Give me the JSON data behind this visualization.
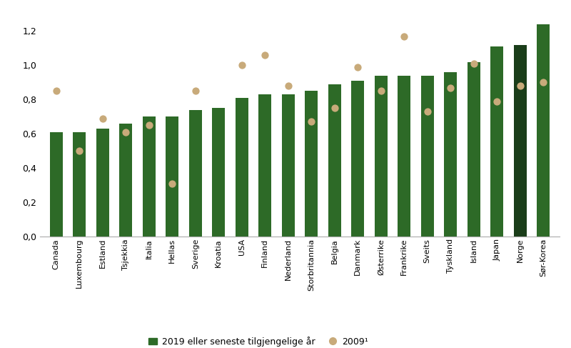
{
  "categories": [
    "Canada",
    "Luxembourg",
    "Estland",
    "Tsjekkia",
    "Italia",
    "Hellas",
    "Sverige",
    "Kroatia",
    "USA",
    "Finland",
    "Nederland",
    "Storbritannia",
    "Belgia",
    "Danmark",
    "Østerrike",
    "Frankrike",
    "Sveits",
    "Tyskland",
    "Island",
    "Japan",
    "Norge",
    "Sør-Korea"
  ],
  "bar_values": [
    0.61,
    0.61,
    0.63,
    0.66,
    0.7,
    0.7,
    0.74,
    0.75,
    0.81,
    0.83,
    0.83,
    0.85,
    0.89,
    0.91,
    0.94,
    0.94,
    0.94,
    0.96,
    1.02,
    1.11,
    1.12,
    1.24
  ],
  "dot_values": [
    0.85,
    0.5,
    0.69,
    0.61,
    0.65,
    0.31,
    0.85,
    null,
    1.0,
    1.06,
    0.88,
    0.67,
    0.75,
    0.99,
    0.85,
    1.17,
    0.73,
    0.87,
    1.01,
    0.79,
    0.88,
    0.9
  ],
  "bar_colors": [
    "#2d6a27",
    "#2d6a27",
    "#2d6a27",
    "#2d6a27",
    "#2d6a27",
    "#2d6a27",
    "#2d6a27",
    "#2d6a27",
    "#2d6a27",
    "#2d6a27",
    "#2d6a27",
    "#2d6a27",
    "#2d6a27",
    "#2d6a27",
    "#2d6a27",
    "#2d6a27",
    "#2d6a27",
    "#2d6a27",
    "#2d6a27",
    "#2d6a27",
    "#1a3d19",
    "#2d6a27"
  ],
  "dot_color": "#c8aa7a",
  "ylim": [
    0,
    1.32
  ],
  "yticks": [
    0.0,
    0.2,
    0.4,
    0.6,
    0.8,
    1.0,
    1.2
  ],
  "ytick_labels": [
    "0,0",
    "0,2",
    "0,4",
    "0,6",
    "0,8",
    "1,0",
    "1,2"
  ],
  "legend_bar_label": "2019 eller seneste tilgjengelige år",
  "legend_dot_label": "2009¹",
  "background_color": "#ffffff",
  "bar_width": 0.55,
  "figure_width": 8.0,
  "figure_height": 4.87
}
